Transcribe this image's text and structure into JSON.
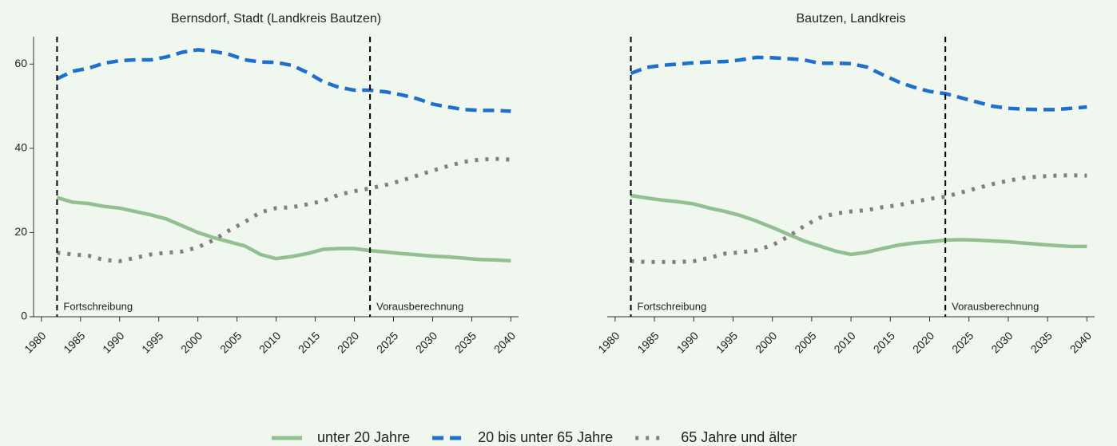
{
  "chart_data": [
    {
      "type": "line",
      "title": "Bernsdorf, Stadt (Landkreis Bautzen)",
      "x": [
        1982,
        1984,
        1986,
        1988,
        1990,
        1992,
        1994,
        1996,
        1998,
        2000,
        2002,
        2004,
        2006,
        2008,
        2010,
        2012,
        2014,
        2016,
        2018,
        2020,
        2022,
        2024,
        2026,
        2028,
        2030,
        2032,
        2034,
        2036,
        2038,
        2040
      ],
      "series": [
        {
          "name": "unter 20 Jahre",
          "color": "#93bf93",
          "linestyle": "solid",
          "values": [
            28.3,
            27.2,
            26.9,
            26.2,
            25.8,
            25,
            24.2,
            23.2,
            21.6,
            20,
            18.8,
            17.8,
            16.8,
            14.8,
            13.8,
            14.3,
            15,
            16,
            16.2,
            16.2,
            15.7,
            15.4,
            15,
            14.7,
            14.4,
            14.2,
            13.9,
            13.6,
            13.5,
            13.3
          ]
        },
        {
          "name": "20 bis unter 65 Jahre",
          "color": "#1f6fcf",
          "linestyle": "dashed",
          "values": [
            56.5,
            58.3,
            59,
            60.2,
            60.8,
            61,
            61,
            61.7,
            62.8,
            63.4,
            63,
            62.3,
            61,
            60.5,
            60.4,
            59.7,
            58,
            55.8,
            54.5,
            53.8,
            53.8,
            53.4,
            52.7,
            51.8,
            50.5,
            49.8,
            49.2,
            49,
            49,
            48.8
          ]
        },
        {
          "name": "65 Jahre und älter",
          "color": "#808080",
          "linestyle": "dotted",
          "values": [
            15.2,
            14.8,
            14.5,
            13.5,
            13.2,
            14,
            14.8,
            15.2,
            15.5,
            16.5,
            18.2,
            20.5,
            22.5,
            24.8,
            25.8,
            26,
            26.7,
            27.5,
            29,
            29.8,
            30.5,
            31.3,
            32.3,
            33.5,
            34.7,
            35.8,
            36.8,
            37.3,
            37.5,
            37.3
          ]
        }
      ],
      "annotations": [
        {
          "text": "Fortschreibung",
          "x": 1982
        },
        {
          "text": "Vorausberechnung",
          "x": 2022
        }
      ],
      "xlim": [
        1979,
        2042
      ],
      "xticks": [
        1980,
        1985,
        1990,
        1995,
        2000,
        2005,
        2010,
        2015,
        2020,
        2025,
        2030,
        2035,
        2040
      ],
      "ylim": [
        0,
        66.5
      ],
      "yticks": [
        0,
        20,
        40,
        60
      ]
    },
    {
      "type": "line",
      "title": "Bautzen, Landkreis",
      "x": [
        1982,
        1984,
        1986,
        1988,
        1990,
        1992,
        1994,
        1996,
        1998,
        2000,
        2002,
        2004,
        2006,
        2008,
        2010,
        2012,
        2014,
        2016,
        2018,
        2020,
        2022,
        2024,
        2026,
        2028,
        2030,
        2032,
        2034,
        2036,
        2038,
        2040
      ],
      "series": [
        {
          "color": "#93bf93",
          "linestyle": "solid",
          "values": [
            28.8,
            28.2,
            27.7,
            27.3,
            26.8,
            25.8,
            25,
            24,
            22.7,
            21.2,
            19.6,
            18,
            16.8,
            15.6,
            14.8,
            15.3,
            16.2,
            17,
            17.5,
            17.8,
            18.2,
            18.3,
            18.2,
            18,
            17.8,
            17.5,
            17.2,
            16.9,
            16.7,
            16.7
          ]
        },
        {
          "color": "#1f6fcf",
          "linestyle": "dashed",
          "values": [
            57.8,
            59.2,
            59.7,
            60,
            60.3,
            60.5,
            60.6,
            61,
            61.6,
            61.5,
            61.3,
            61,
            60.2,
            60.2,
            60.1,
            59.3,
            57.5,
            55.8,
            54.5,
            53.5,
            53,
            52,
            51,
            50,
            49.5,
            49.3,
            49.2,
            49.2,
            49.5,
            49.8
          ]
        },
        {
          "color": "#808080",
          "linestyle": "dotted",
          "values": [
            13.2,
            13,
            13,
            13,
            13.2,
            14,
            15,
            15.3,
            15.8,
            17,
            19,
            21.5,
            23.5,
            24.5,
            25,
            25.3,
            26,
            26.5,
            27.3,
            28,
            28.5,
            29.5,
            30.5,
            31.5,
            32.3,
            33,
            33.3,
            33.5,
            33.6,
            33.5
          ]
        }
      ],
      "annotations": [
        {
          "text": "Fortschreibung",
          "x": 1982
        },
        {
          "text": "Vorausberechnung",
          "x": 2022
        }
      ],
      "xlim": [
        1979,
        2042
      ],
      "xticks": [
        1980,
        1985,
        1990,
        1995,
        2000,
        2005,
        2010,
        2015,
        2020,
        2025,
        2030,
        2035,
        2040
      ],
      "ylim": [
        0,
        66.5
      ]
    }
  ]
}
